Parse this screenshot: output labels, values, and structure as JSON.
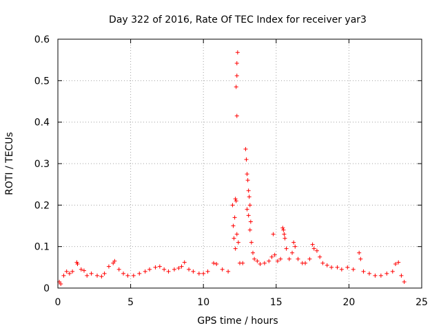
{
  "chart_data": {
    "type": "scatter",
    "title": "Day 322 of 2016, Rate Of TEC Index for receiver yar3",
    "xlabel": "GPS time / hours",
    "ylabel": "ROTI / TECUs",
    "xlim": [
      0,
      25
    ],
    "ylim": [
      0,
      0.6
    ],
    "xticks": [
      0,
      5,
      10,
      15,
      20,
      25
    ],
    "yticks": [
      0,
      0.1,
      0.2,
      0.3,
      0.4,
      0.5,
      0.6
    ],
    "xtick_labels": [
      "0",
      "5",
      "10",
      "15",
      "20",
      "25"
    ],
    "ytick_labels": [
      "0",
      "0.1",
      "0.2",
      "0.3",
      "0.4",
      "0.5",
      "0.6"
    ],
    "grid": true,
    "marker": "+",
    "color": "#ff0000",
    "points": [
      [
        0.1,
        0.015
      ],
      [
        0.2,
        0.01
      ],
      [
        0.4,
        0.03
      ],
      [
        0.6,
        0.04
      ],
      [
        0.8,
        0.035
      ],
      [
        1.0,
        0.04
      ],
      [
        1.3,
        0.062
      ],
      [
        1.35,
        0.058
      ],
      [
        1.6,
        0.045
      ],
      [
        1.8,
        0.042
      ],
      [
        2.0,
        0.03
      ],
      [
        2.3,
        0.035
      ],
      [
        2.7,
        0.03
      ],
      [
        3.0,
        0.028
      ],
      [
        3.2,
        0.035
      ],
      [
        3.5,
        0.052
      ],
      [
        3.8,
        0.06
      ],
      [
        3.9,
        0.065
      ],
      [
        4.2,
        0.045
      ],
      [
        4.5,
        0.035
      ],
      [
        4.8,
        0.03
      ],
      [
        5.2,
        0.03
      ],
      [
        5.6,
        0.035
      ],
      [
        6.0,
        0.04
      ],
      [
        6.3,
        0.045
      ],
      [
        6.7,
        0.05
      ],
      [
        7.0,
        0.052
      ],
      [
        7.3,
        0.045
      ],
      [
        7.6,
        0.04
      ],
      [
        8.0,
        0.045
      ],
      [
        8.3,
        0.048
      ],
      [
        8.5,
        0.052
      ],
      [
        8.7,
        0.062
      ],
      [
        9.0,
        0.045
      ],
      [
        9.3,
        0.04
      ],
      [
        9.7,
        0.035
      ],
      [
        10.0,
        0.035
      ],
      [
        10.3,
        0.04
      ],
      [
        10.7,
        0.06
      ],
      [
        10.9,
        0.058
      ],
      [
        11.3,
        0.045
      ],
      [
        11.7,
        0.04
      ],
      [
        12.0,
        0.2
      ],
      [
        12.05,
        0.15
      ],
      [
        12.1,
        0.12
      ],
      [
        12.15,
        0.17
      ],
      [
        12.2,
        0.215
      ],
      [
        12.25,
        0.21
      ],
      [
        12.25,
        0.485
      ],
      [
        12.3,
        0.512
      ],
      [
        12.3,
        0.542
      ],
      [
        12.35,
        0.568
      ],
      [
        12.3,
        0.415
      ],
      [
        12.2,
        0.095
      ],
      [
        12.3,
        0.13
      ],
      [
        12.4,
        0.11
      ],
      [
        12.5,
        0.06
      ],
      [
        12.7,
        0.06
      ],
      [
        12.9,
        0.335
      ],
      [
        12.95,
        0.31
      ],
      [
        13.0,
        0.275
      ],
      [
        13.05,
        0.26
      ],
      [
        13.1,
        0.235
      ],
      [
        13.0,
        0.19
      ],
      [
        13.1,
        0.175
      ],
      [
        13.15,
        0.22
      ],
      [
        13.2,
        0.2
      ],
      [
        13.25,
        0.16
      ],
      [
        13.2,
        0.14
      ],
      [
        13.3,
        0.11
      ],
      [
        13.4,
        0.085
      ],
      [
        13.5,
        0.07
      ],
      [
        13.7,
        0.065
      ],
      [
        13.9,
        0.058
      ],
      [
        14.2,
        0.06
      ],
      [
        14.5,
        0.065
      ],
      [
        14.7,
        0.075
      ],
      [
        14.8,
        0.13
      ],
      [
        14.9,
        0.08
      ],
      [
        15.1,
        0.065
      ],
      [
        15.3,
        0.07
      ],
      [
        15.45,
        0.145
      ],
      [
        15.5,
        0.14
      ],
      [
        15.55,
        0.13
      ],
      [
        15.6,
        0.12
      ],
      [
        15.7,
        0.095
      ],
      [
        15.9,
        0.07
      ],
      [
        16.1,
        0.085
      ],
      [
        16.2,
        0.11
      ],
      [
        16.3,
        0.1
      ],
      [
        16.5,
        0.07
      ],
      [
        16.8,
        0.06
      ],
      [
        17.0,
        0.06
      ],
      [
        17.3,
        0.07
      ],
      [
        17.5,
        0.105
      ],
      [
        17.6,
        0.095
      ],
      [
        17.8,
        0.09
      ],
      [
        18.0,
        0.075
      ],
      [
        18.2,
        0.06
      ],
      [
        18.5,
        0.055
      ],
      [
        18.8,
        0.05
      ],
      [
        19.2,
        0.05
      ],
      [
        19.5,
        0.045
      ],
      [
        19.9,
        0.05
      ],
      [
        20.3,
        0.045
      ],
      [
        20.7,
        0.085
      ],
      [
        20.8,
        0.07
      ],
      [
        21.0,
        0.04
      ],
      [
        21.4,
        0.035
      ],
      [
        21.8,
        0.03
      ],
      [
        22.2,
        0.03
      ],
      [
        22.6,
        0.035
      ],
      [
        23.0,
        0.04
      ],
      [
        23.2,
        0.058
      ],
      [
        23.4,
        0.062
      ],
      [
        23.6,
        0.03
      ],
      [
        23.8,
        0.015
      ]
    ]
  }
}
